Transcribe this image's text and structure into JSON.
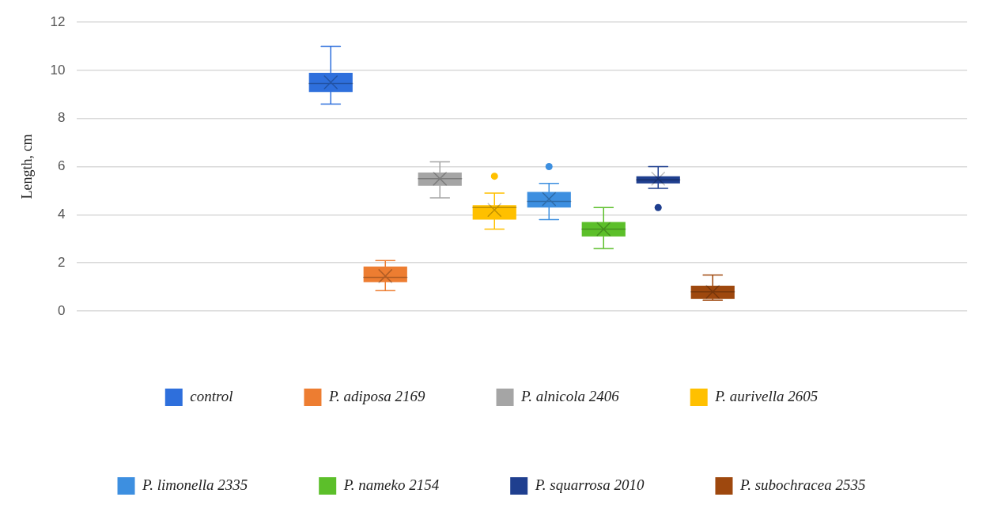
{
  "chart_data": {
    "type": "box",
    "ylabel": "Length, cm",
    "categories": [
      null
    ],
    "ylim": [
      0,
      12
    ],
    "yticks": [
      0,
      2,
      4,
      6,
      8,
      10,
      12
    ],
    "grid": "y",
    "legend": "bottom",
    "series": [
      {
        "name": "control",
        "color": "#2e6fdc",
        "boxes": [
          {
            "low": 8.6,
            "q1": 9.1,
            "median": 9.45,
            "q3": 9.9,
            "high": 11.0,
            "mean": 9.5
          }
        ]
      },
      {
        "name": "P. adiposa 2169",
        "color": "#ed7d31",
        "boxes": [
          {
            "low": 0.85,
            "q1": 1.2,
            "median": 1.4,
            "q3": 1.85,
            "high": 2.1,
            "mean": 1.45
          }
        ]
      },
      {
        "name": "P. alnicola 2406",
        "color": "#a5a5a5",
        "boxes": [
          {
            "low": 4.7,
            "q1": 5.2,
            "median": 5.5,
            "q3": 5.75,
            "high": 6.2,
            "mean": 5.5
          }
        ]
      },
      {
        "name": "P. aurivella 2605",
        "color": "#ffc000",
        "boxes": [
          {
            "low": 3.4,
            "q1": 3.8,
            "median": 4.3,
            "q3": 4.4,
            "high": 4.9,
            "mean": 4.2,
            "outliers": [
              5.6
            ]
          }
        ]
      },
      {
        "name": "P. limonella 2335",
        "color": "#3d8fe0",
        "boxes": [
          {
            "low": 3.8,
            "q1": 4.3,
            "median": 4.55,
            "q3": 4.95,
            "high": 5.3,
            "mean": 4.65,
            "outliers": [
              6.0
            ]
          }
        ]
      },
      {
        "name": "P. nameko 2154",
        "color": "#5cbf2a",
        "boxes": [
          {
            "low": 2.6,
            "q1": 3.1,
            "median": 3.4,
            "q3": 3.7,
            "high": 4.3,
            "mean": 3.4
          }
        ]
      },
      {
        "name": "P. squarrosa 2010",
        "color": "#1f3f8f",
        "boxes": [
          {
            "low": 5.1,
            "q1": 5.3,
            "median": 5.45,
            "q3": 5.6,
            "high": 6.0,
            "mean": 5.5,
            "outliers": [
              4.3
            ]
          }
        ]
      },
      {
        "name": "P. subochracea 2535",
        "color": "#9e480e",
        "boxes": [
          {
            "low": 0.45,
            "q1": 0.5,
            "median": 0.8,
            "q3": 1.05,
            "high": 1.5,
            "mean": 0.8
          }
        ]
      }
    ]
  }
}
